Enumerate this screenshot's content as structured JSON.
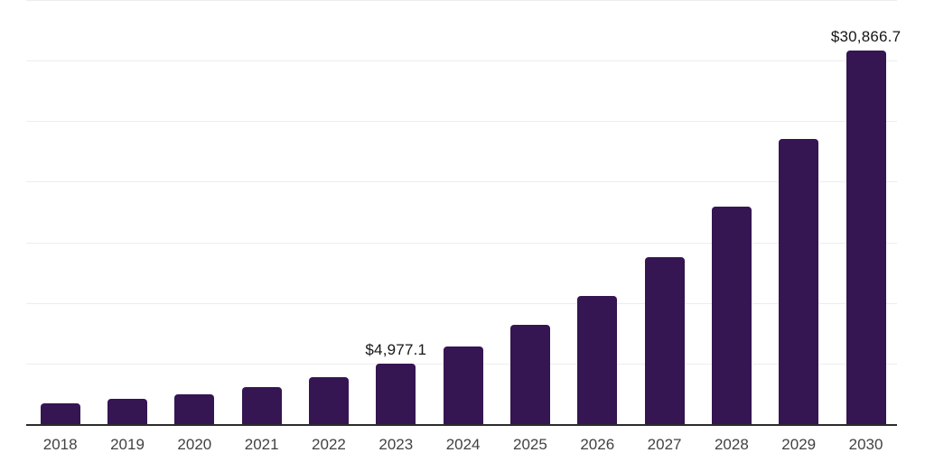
{
  "chart_data": {
    "type": "bar",
    "title": "",
    "xlabel": "",
    "ylabel": "",
    "categories": [
      "2018",
      "2019",
      "2020",
      "2021",
      "2022",
      "2023",
      "2024",
      "2025",
      "2026",
      "2027",
      "2028",
      "2029",
      "2030"
    ],
    "values": [
      1740,
      2090,
      2480,
      3040,
      3900,
      4977.1,
      6400,
      8210,
      10570,
      13800,
      17950,
      23500,
      30866.7
    ],
    "data_labels": {
      "2023": "$4,977.1",
      "2030": "$30,866.7"
    },
    "ylim": [
      0,
      35000
    ],
    "gridline_step": 5000,
    "grid": "horizontal-only",
    "y_axis_tick_labels": "none",
    "legend": "none",
    "colors": {
      "bar": "#351552",
      "gridline": "#ededed",
      "axis_line": "#2b2b2b",
      "x_tick_label": "#424242",
      "data_label": "#161616",
      "background": "#ffffff"
    }
  }
}
